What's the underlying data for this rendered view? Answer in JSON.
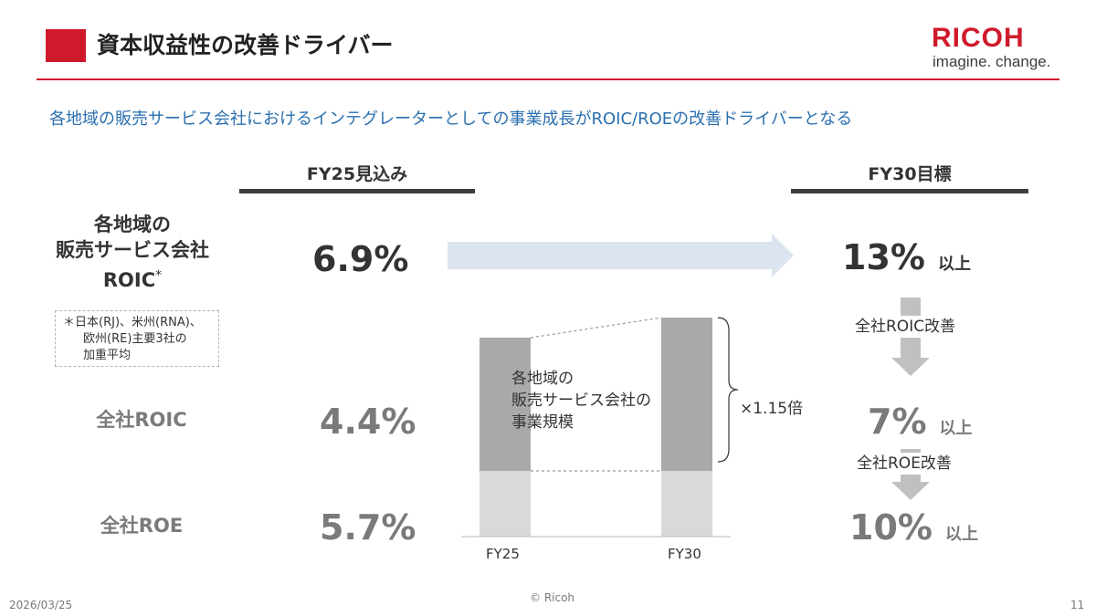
{
  "header": {
    "title": "資本収益性の改善ドライバー",
    "logo_text": "RICOH",
    "tagline": "imagine. change.",
    "accent_color": "#cf1a2b"
  },
  "subtitle": "各地域の販売サービス会社におけるインテグレーターとしての事業成長がROIC/ROEの改善ドライバーとなる",
  "columns": {
    "current": "FY25見込み",
    "target": "FY30目標"
  },
  "rows": {
    "roic_regional": {
      "label_lines": [
        "各地域の",
        "販売サービス会社",
        "ROIC"
      ],
      "label_mark": "*",
      "current": "6.9%",
      "target": "13%",
      "target_unit": "以上"
    },
    "roic_total": {
      "label": "全社ROIC",
      "current": "4.4%",
      "target": "7%",
      "target_unit": "以上"
    },
    "roe_total": {
      "label": "全社ROE",
      "current": "5.7%",
      "target": "10%",
      "target_unit": "以上"
    }
  },
  "note_lines": [
    "＊日本(RJ)、米州(RNA)、",
    "欧州(RE)主要3社の",
    "加重平均"
  ],
  "improvement_labels": {
    "roic": "全社ROIC改善",
    "roe": "全社ROE改善"
  },
  "chart_data": {
    "type": "bar",
    "categories": [
      "FY25",
      "FY30"
    ],
    "segment_label_lines": [
      "各地域の",
      "販売サービス会社の",
      "事業規模"
    ],
    "relative_values": [
      1.0,
      1.15
    ],
    "growth_label": "×1.15倍",
    "colors": {
      "top_segment": "#a9a9a9",
      "base_segment": "#d9d9d9"
    }
  },
  "footer": {
    "date": "2026/03/25",
    "copyright": "© Ricoh",
    "page": "11"
  }
}
